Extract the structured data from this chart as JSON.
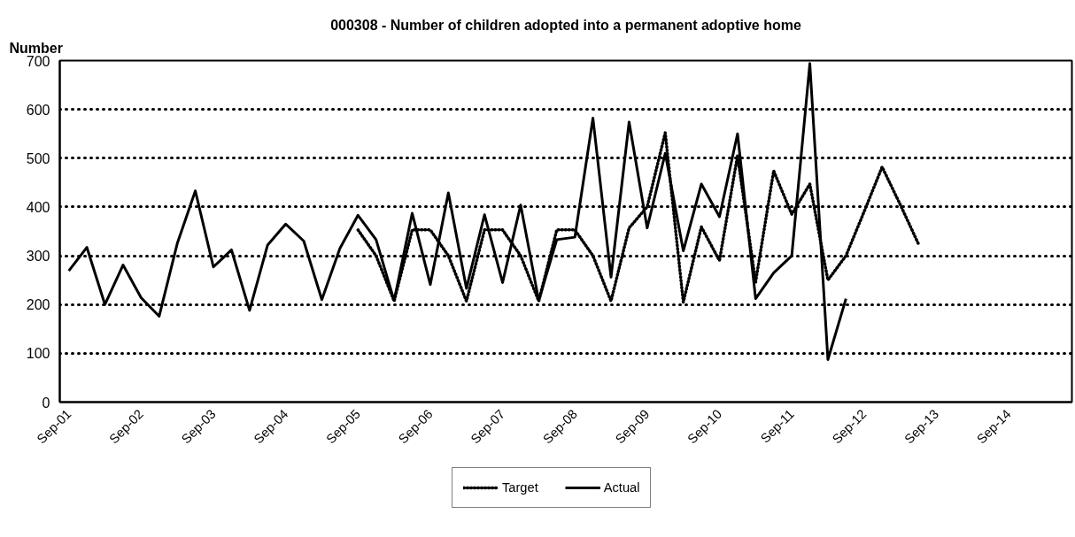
{
  "chart_data": {
    "type": "line",
    "title": "000308 - Number of children adopted into a permanent adoptive home",
    "ylabel": "Number",
    "categories": [
      "Sep-01",
      null,
      null,
      null,
      "Sep-02",
      null,
      null,
      null,
      "Sep-03",
      null,
      null,
      null,
      "Sep-04",
      null,
      null,
      null,
      "Sep-05",
      null,
      null,
      null,
      "Sep-06",
      null,
      null,
      null,
      "Sep-07",
      null,
      null,
      null,
      "Sep-08",
      null,
      null,
      null,
      "Sep-09",
      null,
      null,
      null,
      "Sep-10",
      null,
      null,
      null,
      "Sep-11",
      null,
      null,
      null,
      "Sep-12",
      null,
      null,
      null,
      "Sep-13",
      null,
      null,
      null,
      "Sep-14",
      null,
      null,
      null
    ],
    "series": [
      {
        "name": "Target",
        "color": "#000000",
        "line_style": "dotted",
        "values": [
          null,
          null,
          null,
          null,
          null,
          null,
          null,
          null,
          null,
          null,
          null,
          null,
          null,
          null,
          null,
          null,
          353,
          300,
          207,
          353,
          353,
          300,
          207,
          353,
          353,
          300,
          207,
          353,
          353,
          300,
          207,
          357,
          400,
          552,
          205,
          359,
          290,
          505,
          246,
          474,
          385,
          447,
          250,
          300,
          390,
          482,
          405,
          325,
          null,
          null,
          null,
          null,
          null,
          null,
          null,
          null
        ]
      },
      {
        "name": "Actual",
        "color": "#000000",
        "line_style": "solid",
        "values": [
          269,
          317,
          200,
          281,
          214,
          176,
          325,
          433,
          277,
          312,
          188,
          322,
          365,
          330,
          210,
          315,
          383,
          333,
          208,
          387,
          241,
          429,
          233,
          384,
          245,
          404,
          208,
          333,
          338,
          582,
          256,
          574,
          357,
          510,
          310,
          447,
          380,
          550,
          212,
          265,
          300,
          694,
          87,
          212,
          null,
          null,
          null,
          null,
          null,
          null,
          null,
          null,
          null,
          null,
          null,
          null
        ]
      }
    ],
    "ylim": [
      0,
      700
    ],
    "yticks": [
      0,
      100,
      200,
      300,
      400,
      500,
      600,
      700
    ],
    "grid": "y",
    "legend": "bottom",
    "marker": "none"
  }
}
